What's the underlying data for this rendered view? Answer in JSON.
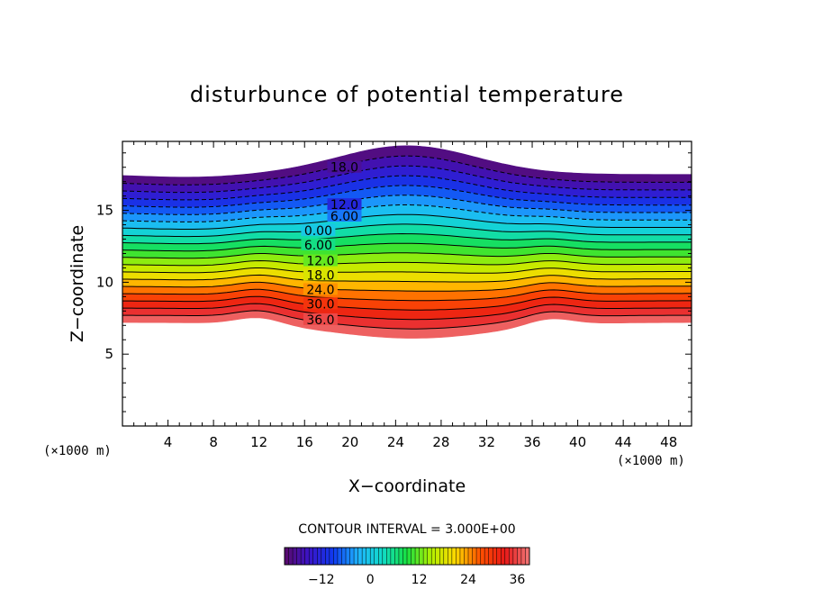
{
  "chart_data": {
    "type": "contour",
    "title": "disturbunce of potential temperature",
    "xlabel": "X−coordinate",
    "ylabel": "Z−coordinate",
    "x_unit_left": "(×1000 m)",
    "x_unit_right": "(×1000 m)",
    "xlim": [
      0,
      50
    ],
    "ylim": [
      0,
      19.8
    ],
    "x_ticks": [
      4,
      8,
      12,
      16,
      20,
      24,
      28,
      32,
      36,
      40,
      44,
      48
    ],
    "y_ticks": [
      5,
      10,
      15
    ],
    "contour_interval_text": "CONTOUR INTERVAL = 3.000E+00",
    "contour_interval": 3,
    "level_range": [
      -21,
      39
    ],
    "negative_levels_dashed": true,
    "contour_labels": [
      {
        "text": "18.0",
        "value": -18,
        "x": 19.5,
        "z": 18.0
      },
      {
        "text": "12.0",
        "value": -12,
        "x": 19.5,
        "z": 15.4
      },
      {
        "text": "6.00",
        "value": -6,
        "x": 19.5,
        "z": 14.6
      },
      {
        "text": "0.00",
        "value": 0,
        "x": 17.2,
        "z": 13.6
      },
      {
        "text": "6.00",
        "value": 6,
        "x": 17.2,
        "z": 12.6
      },
      {
        "text": "12.0",
        "value": 12,
        "x": 17.4,
        "z": 11.5
      },
      {
        "text": "18.0",
        "value": 18,
        "x": 17.4,
        "z": 10.5
      },
      {
        "text": "24.0",
        "value": 24,
        "x": 17.4,
        "z": 9.5
      },
      {
        "text": "30.0",
        "value": 30,
        "x": 17.4,
        "z": 8.5
      },
      {
        "text": "36.0",
        "value": 36,
        "x": 17.4,
        "z": 7.4
      }
    ],
    "colorbar": {
      "tick_labels": [
        "−12",
        "0",
        "12",
        "24",
        "36"
      ],
      "tick_values": [
        -12,
        0,
        12,
        24,
        36
      ],
      "range": [
        -21,
        39
      ]
    },
    "colormap": [
      "#5a0a6a",
      "#3a14c8",
      "#0f3af0",
      "#1fb4ff",
      "#10dcc8",
      "#18e040",
      "#b4f000",
      "#ffd800",
      "#ff5000",
      "#e81818",
      "#f07878"
    ]
  }
}
